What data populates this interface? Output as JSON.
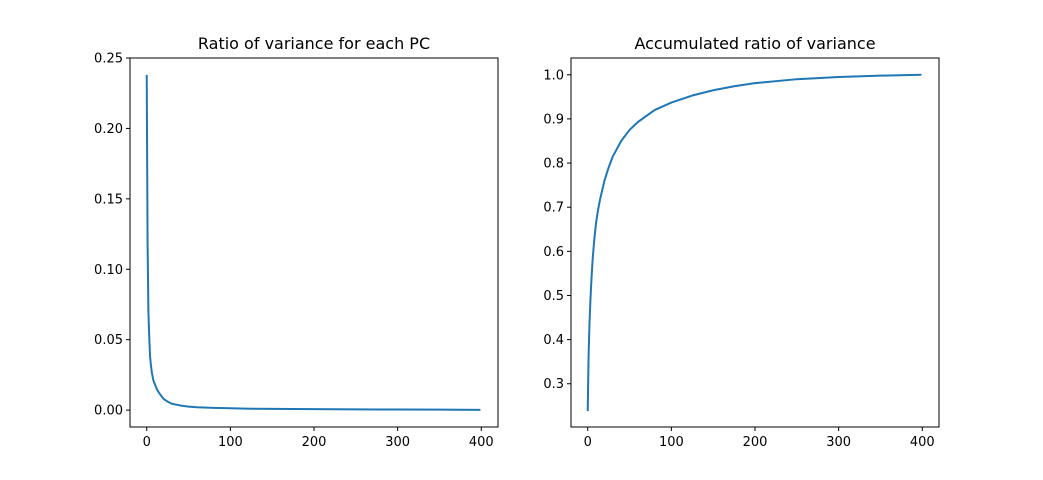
{
  "line_color": "#1f77b4",
  "chart_data": [
    {
      "type": "line",
      "title": "Ratio of variance for each PC",
      "xlabel": "",
      "ylabel": "",
      "xlim": [
        -20,
        420
      ],
      "ylim": [
        -0.012,
        0.25
      ],
      "xticks": [
        0,
        100,
        200,
        300,
        400
      ],
      "xtick_labels": [
        "0",
        "100",
        "200",
        "300",
        "400"
      ],
      "yticks": [
        0.0,
        0.05,
        0.1,
        0.15,
        0.2,
        0.25
      ],
      "ytick_labels": [
        "0.00",
        "0.05",
        "0.10",
        "0.15",
        "0.20",
        "0.25"
      ],
      "grid": false,
      "series": [
        {
          "x": [
            0,
            1,
            2,
            3,
            4,
            5,
            6,
            8,
            10,
            12,
            15,
            20,
            25,
            30,
            40,
            50,
            60,
            80,
            100,
            125,
            150,
            200,
            250,
            300,
            350,
            399
          ],
          "y": [
            0.238,
            0.12,
            0.07,
            0.052,
            0.038,
            0.032,
            0.027,
            0.021,
            0.018,
            0.015,
            0.012,
            0.008,
            0.006,
            0.0045,
            0.0033,
            0.0025,
            0.002,
            0.0016,
            0.0013,
            0.001,
            0.0009,
            0.0007,
            0.0005,
            0.0004,
            0.0003,
            0.0002
          ]
        }
      ]
    },
    {
      "type": "line",
      "title": "Accumulated ratio of variance",
      "xlabel": "",
      "ylabel": "",
      "xlim": [
        -20,
        420
      ],
      "ylim": [
        0.202,
        1.038
      ],
      "xticks": [
        0,
        100,
        200,
        300,
        400
      ],
      "xtick_labels": [
        "0",
        "100",
        "200",
        "300",
        "400"
      ],
      "yticks": [
        0.3,
        0.4,
        0.5,
        0.6,
        0.7,
        0.8,
        0.9,
        1.0
      ],
      "ytick_labels": [
        "0.3",
        "0.4",
        "0.5",
        "0.6",
        "0.7",
        "0.8",
        "0.9",
        "1.0"
      ],
      "grid": false,
      "series": [
        {
          "x": [
            0,
            1,
            2,
            3,
            4,
            5,
            6,
            8,
            10,
            12,
            15,
            20,
            25,
            30,
            40,
            50,
            60,
            80,
            100,
            125,
            150,
            175,
            200,
            250,
            300,
            350,
            399
          ],
          "y": [
            0.238,
            0.36,
            0.43,
            0.48,
            0.52,
            0.555,
            0.585,
            0.63,
            0.665,
            0.69,
            0.72,
            0.76,
            0.79,
            0.815,
            0.85,
            0.875,
            0.893,
            0.92,
            0.937,
            0.953,
            0.965,
            0.974,
            0.981,
            0.99,
            0.995,
            0.998,
            1.0
          ]
        }
      ]
    }
  ]
}
